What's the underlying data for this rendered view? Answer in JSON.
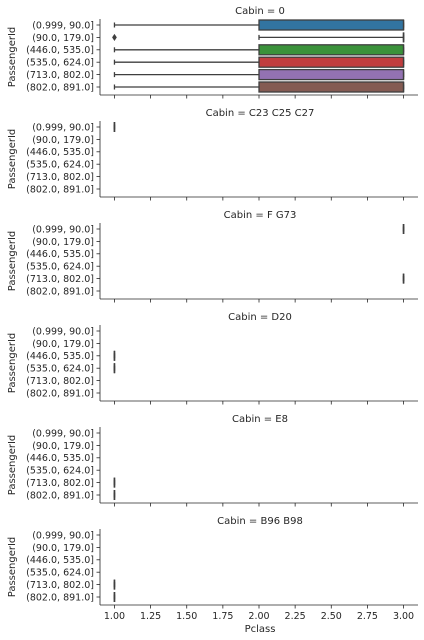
{
  "chart_data": {
    "type": "boxplot",
    "orientation": "horizontal",
    "xlabel": "Pclass",
    "ylabel": "PassengerId",
    "xlim": [
      0.9,
      3.1
    ],
    "xticks": [
      "1.00",
      "1.25",
      "1.50",
      "1.75",
      "2.00",
      "2.25",
      "2.50",
      "2.75",
      "3.00"
    ],
    "categories": [
      "(0.999, 90.0]",
      "(90.0, 179.0]",
      "(446.0, 535.0]",
      "(535.0, 624.0]",
      "(713.0, 802.0]",
      "(802.0, 891.0]"
    ],
    "colors": [
      "#3274a1",
      "#e1812c",
      "#3a923a",
      "#c03d3e",
      "#9372b2",
      "#845b53"
    ],
    "panels": [
      {
        "title": "Cabin = 0",
        "boxes": [
          {
            "category": "(0.999, 90.0]",
            "whisker_low": 1,
            "q1": 2,
            "median": 3,
            "q3": 3,
            "whisker_high": 3,
            "outliers": []
          },
          {
            "category": "(90.0, 179.0]",
            "whisker_low": 2,
            "q1": 3,
            "median": 3,
            "q3": 3,
            "whisker_high": 3,
            "outliers": [
              1
            ]
          },
          {
            "category": "(446.0, 535.0]",
            "whisker_low": 1,
            "q1": 2,
            "median": 3,
            "q3": 3,
            "whisker_high": 3,
            "outliers": []
          },
          {
            "category": "(535.0, 624.0]",
            "whisker_low": 1,
            "q1": 2,
            "median": 3,
            "q3": 3,
            "whisker_high": 3,
            "outliers": []
          },
          {
            "category": "(713.0, 802.0]",
            "whisker_low": 1,
            "q1": 2,
            "median": 3,
            "q3": 3,
            "whisker_high": 3,
            "outliers": []
          },
          {
            "category": "(802.0, 891.0]",
            "whisker_low": 1,
            "q1": 2,
            "median": 3,
            "q3": 3,
            "whisker_high": 3,
            "outliers": []
          }
        ]
      },
      {
        "title": "Cabin = C23 C25 C27",
        "boxes": [
          {
            "category": "(0.999, 90.0]",
            "whisker_low": 1,
            "q1": 1,
            "median": 1,
            "q3": 1,
            "whisker_high": 1,
            "outliers": []
          }
        ]
      },
      {
        "title": "Cabin = F G73",
        "boxes": [
          {
            "category": "(0.999, 90.0]",
            "whisker_low": 3,
            "q1": 3,
            "median": 3,
            "q3": 3,
            "whisker_high": 3,
            "outliers": []
          },
          {
            "category": "(713.0, 802.0]",
            "whisker_low": 3,
            "q1": 3,
            "median": 3,
            "q3": 3,
            "whisker_high": 3,
            "outliers": []
          }
        ]
      },
      {
        "title": "Cabin = D20",
        "boxes": [
          {
            "category": "(446.0, 535.0]",
            "whisker_low": 1,
            "q1": 1,
            "median": 1,
            "q3": 1,
            "whisker_high": 1,
            "outliers": []
          },
          {
            "category": "(535.0, 624.0]",
            "whisker_low": 1,
            "q1": 1,
            "median": 1,
            "q3": 1,
            "whisker_high": 1,
            "outliers": []
          }
        ]
      },
      {
        "title": "Cabin = E8",
        "boxes": [
          {
            "category": "(713.0, 802.0]",
            "whisker_low": 1,
            "q1": 1,
            "median": 1,
            "q3": 1,
            "whisker_high": 1,
            "outliers": []
          },
          {
            "category": "(802.0, 891.0]",
            "whisker_low": 1,
            "q1": 1,
            "median": 1,
            "q3": 1,
            "whisker_high": 1,
            "outliers": []
          }
        ]
      },
      {
        "title": "Cabin = B96 B98",
        "boxes": [
          {
            "category": "(713.0, 802.0]",
            "whisker_low": 1,
            "q1": 1,
            "median": 1,
            "q3": 1,
            "whisker_high": 1,
            "outliers": []
          },
          {
            "category": "(802.0, 891.0]",
            "whisker_low": 1,
            "q1": 1,
            "median": 1,
            "q3": 1,
            "whisker_high": 1,
            "outliers": []
          }
        ]
      }
    ]
  }
}
